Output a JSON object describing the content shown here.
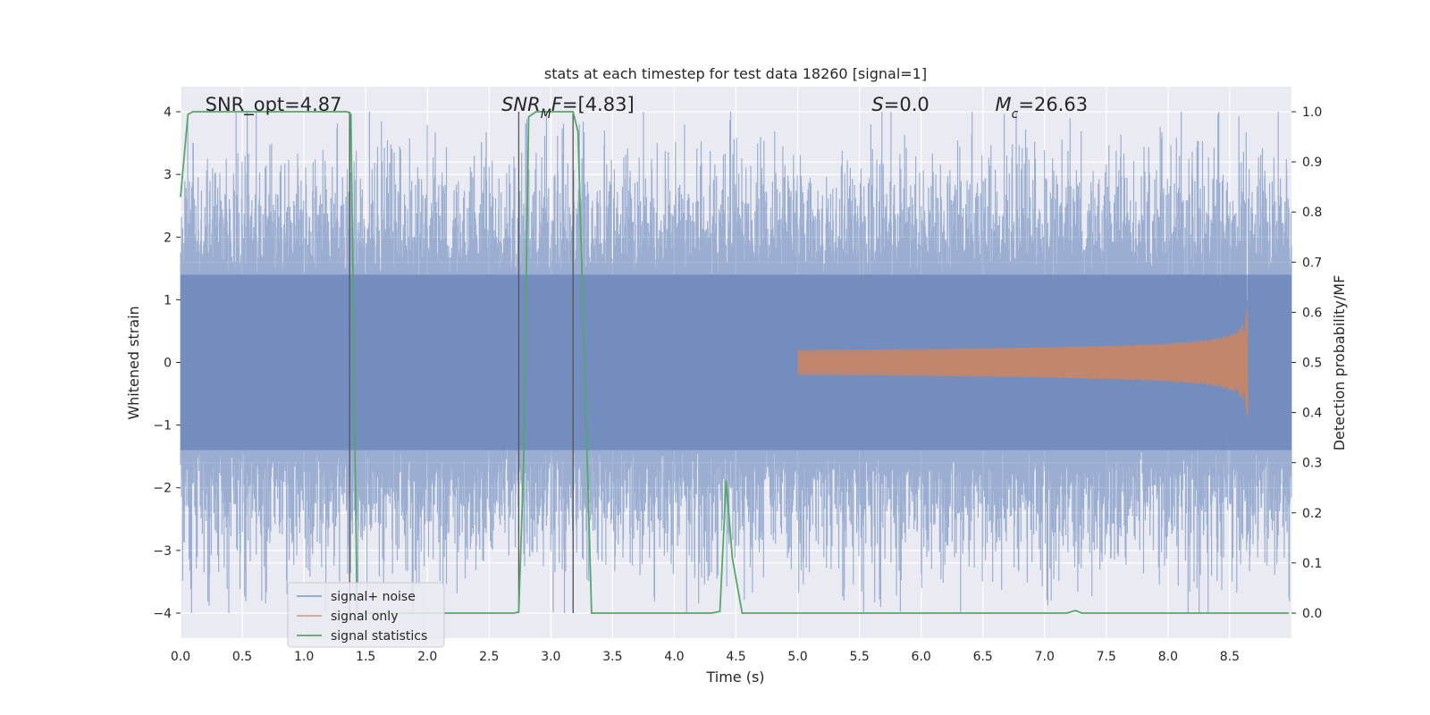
{
  "chart_data": {
    "type": "line",
    "title": "stats at each timestep for test data 18260 [signal=1]",
    "xlabel": "Time (s)",
    "ylabel": "Whitened strain",
    "ylabel_right": "Detection probability/MF",
    "xlim": [
      0.0,
      9.0
    ],
    "ylim": [
      -4.4,
      4.4
    ],
    "ylim_right": [
      -0.05,
      1.05
    ],
    "x_ticks": [
      "0.0",
      "0.5",
      "1.0",
      "1.5",
      "2.0",
      "2.5",
      "3.0",
      "3.5",
      "4.0",
      "4.5",
      "5.0",
      "5.5",
      "6.0",
      "6.5",
      "7.0",
      "7.5",
      "8.0",
      "8.5"
    ],
    "y_ticks": [
      "−4",
      "−3",
      "−2",
      "−1",
      "0",
      "1",
      "2",
      "3",
      "4"
    ],
    "y_right_ticks": [
      "0.0",
      "0.1",
      "0.2",
      "0.3",
      "0.4",
      "0.5",
      "0.6",
      "0.7",
      "0.8",
      "0.9",
      "1.0"
    ],
    "grid": true,
    "legend_position": "lower-left",
    "background": "#eaeaf2",
    "annotations": [
      {
        "text": "SNR_opt=4.87",
        "x": 0.2
      },
      {
        "text": "SNR_MF=[4.83]",
        "x": 2.6
      },
      {
        "text": "S=0.0",
        "x": 5.6
      },
      {
        "text": "M_c=26.63",
        "x": 6.6
      }
    ],
    "vlines": [
      1.37,
      2.74,
      3.18
    ],
    "series": [
      {
        "name": "signal+ noise",
        "color": "#4c72b0",
        "description": "whitened noise with signal, amplitude ~±1.5 typical, peaks up to ~4"
      },
      {
        "name": "signal only",
        "color": "#dd8452",
        "description": "chirp signal growing until merger near t=8.65 s, peak amplitude ~1.1"
      },
      {
        "name": "signal statistics",
        "color": "#55a868",
        "axis": "right",
        "x": [
          0.0,
          0.06,
          0.1,
          1.35,
          1.38,
          1.43,
          2.7,
          2.74,
          2.78,
          2.82,
          2.88,
          3.18,
          3.22,
          3.33,
          4.3,
          4.37,
          4.42,
          4.47,
          4.55,
          7.18,
          7.25,
          7.3,
          8.98
        ],
        "values": [
          0.83,
          0.995,
          1.0,
          1.0,
          0.995,
          0.0,
          0.0,
          0.002,
          0.3,
          0.99,
          1.0,
          1.0,
          0.96,
          0.0,
          0.0,
          0.003,
          0.265,
          0.11,
          0.0,
          0.0,
          0.005,
          0.0,
          0.0
        ]
      }
    ]
  }
}
